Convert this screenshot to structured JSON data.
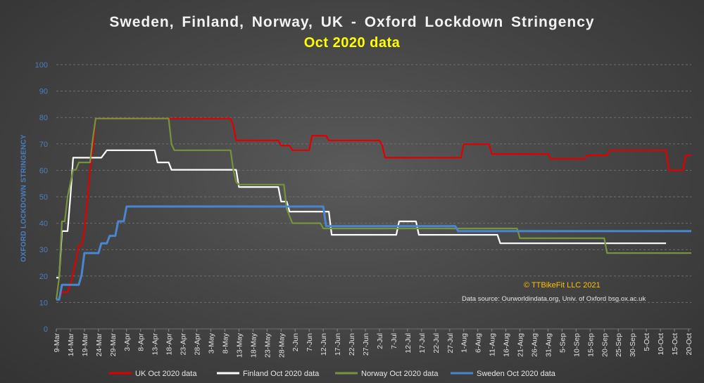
{
  "chart_data": {
    "type": "line",
    "title": "Sweden, Finland, Norway, UK -  Oxford Lockdown Stringency",
    "subtitle": "Oct 2020 data",
    "ylabel": "OXFORD LOCKDOWN STRINGENCY",
    "xlabel": "",
    "ylim": [
      0,
      100
    ],
    "yticks": [
      0,
      10,
      20,
      30,
      40,
      50,
      60,
      70,
      80,
      90,
      100
    ],
    "grid": true,
    "legend_position": "bottom",
    "x_start": "9-Mar",
    "x_tick_labels": [
      "9-Mar",
      "14-Mar",
      "19-Mar",
      "24-Mar",
      "29-Mar",
      "3-Apr",
      "8-Apr",
      "13-Apr",
      "18-Apr",
      "23-Apr",
      "28-Apr",
      "3-May",
      "8-May",
      "13-May",
      "18-May",
      "23-May",
      "28-May",
      "2-Jun",
      "7-Jun",
      "12-Jun",
      "17-Jun",
      "22-Jun",
      "27-Jun",
      "2-Jul",
      "7-Jul",
      "12-Jul",
      "17-Jul",
      "22-Jul",
      "27-Jul",
      "1-Aug",
      "6-Aug",
      "11-Aug",
      "16-Aug",
      "21-Aug",
      "26-Aug",
      "31-Aug",
      "5-Sep",
      "10-Sep",
      "15-Sep",
      "20-Sep",
      "25-Sep",
      "30-Sep",
      "5-Oct",
      "10-Oct",
      "15-Oct",
      "20-Oct"
    ],
    "series": [
      {
        "name": "UK Oct 2020 data",
        "color": "#e00000",
        "points": [
          [
            "9-Mar",
            11.1
          ],
          [
            "10-Mar",
            11.1
          ],
          [
            "11-Mar",
            13.9
          ],
          [
            "13-Mar",
            13.9
          ],
          [
            "14-Mar",
            16.7
          ],
          [
            "16-Mar",
            25.9
          ],
          [
            "17-Mar",
            31.5
          ],
          [
            "18-Mar",
            31.5
          ],
          [
            "19-Mar",
            37.0
          ],
          [
            "20-Mar",
            48.2
          ],
          [
            "21-Mar",
            60.0
          ],
          [
            "22-Mar",
            68.0
          ],
          [
            "23-Mar",
            79.6
          ],
          [
            "18-Apr",
            79.6
          ],
          [
            "18-Apr",
            79.6
          ],
          [
            "10-May",
            79.6
          ],
          [
            "11-May",
            77.0
          ],
          [
            "12-May",
            71.3
          ],
          [
            "27-May",
            71.3
          ],
          [
            "28-May",
            69.4
          ],
          [
            "31-May",
            69.4
          ],
          [
            "1-Jun",
            67.6
          ],
          [
            "7-Jun",
            67.6
          ],
          [
            "8-Jun",
            73.1
          ],
          [
            "13-Jun",
            73.1
          ],
          [
            "14-Jun",
            71.3
          ],
          [
            "30-Jun",
            71.3
          ],
          [
            "2-Jul",
            71.3
          ],
          [
            "3-Jul",
            69.4
          ],
          [
            "4-Jul",
            64.8
          ],
          [
            "31-Jul",
            64.8
          ],
          [
            "1-Aug",
            69.9
          ],
          [
            "10-Aug",
            69.9
          ],
          [
            "11-Aug",
            66.2
          ],
          [
            "31-Aug",
            66.2
          ],
          [
            "1-Sep",
            64.4
          ],
          [
            "13-Sep",
            64.4
          ],
          [
            "14-Sep",
            65.7
          ],
          [
            "21-Sep",
            65.7
          ],
          [
            "22-Sep",
            67.6
          ],
          [
            "12-Oct",
            67.6
          ],
          [
            "13-Oct",
            60.0
          ],
          [
            "18-Oct",
            60.0
          ],
          [
            "19-Oct",
            65.7
          ],
          [
            "21-Oct",
            65.7
          ]
        ]
      },
      {
        "name": "Finland Oct 2020 data",
        "color": "#ffffff",
        "points": [
          [
            "9-Mar",
            19.4
          ],
          [
            "10-Mar",
            19.4
          ],
          [
            "11-Mar",
            37.0
          ],
          [
            "13-Mar",
            37.0
          ],
          [
            "14-Mar",
            50.0
          ],
          [
            "15-Mar",
            64.8
          ],
          [
            "25-Mar",
            64.8
          ],
          [
            "27-Mar",
            67.6
          ],
          [
            "13-Apr",
            67.6
          ],
          [
            "14-Apr",
            63.0
          ],
          [
            "18-Apr",
            63.0
          ],
          [
            "19-Apr",
            60.2
          ],
          [
            "12-May",
            60.2
          ],
          [
            "13-May",
            53.7
          ],
          [
            "27-May",
            53.7
          ],
          [
            "28-May",
            48.2
          ],
          [
            "30-May",
            48.2
          ],
          [
            "31-May",
            44.4
          ],
          [
            "14-Jun",
            44.4
          ],
          [
            "15-Jun",
            35.6
          ],
          [
            "8-Jul",
            35.6
          ],
          [
            "9-Jul",
            40.7
          ],
          [
            "15-Jul",
            40.7
          ],
          [
            "16-Jul",
            35.6
          ],
          [
            "13-Aug",
            35.6
          ],
          [
            "14-Aug",
            32.4
          ],
          [
            "12-Oct",
            32.4
          ]
        ]
      },
      {
        "name": "Norway Oct 2020 data",
        "color": "#77933c",
        "points": [
          [
            "9-Mar",
            11.1
          ],
          [
            "10-Mar",
            19.4
          ],
          [
            "11-Mar",
            40.7
          ],
          [
            "12-Mar",
            40.7
          ],
          [
            "13-Mar",
            50.0
          ],
          [
            "15-Mar",
            60.2
          ],
          [
            "16-Mar",
            60.2
          ],
          [
            "17-Mar",
            63.0
          ],
          [
            "21-Mar",
            63.0
          ],
          [
            "22-Mar",
            72.0
          ],
          [
            "23-Mar",
            79.6
          ],
          [
            "18-Apr",
            79.6
          ],
          [
            "19-Apr",
            69.9
          ],
          [
            "20-Apr",
            67.6
          ],
          [
            "10-May",
            67.6
          ],
          [
            "11-May",
            60.2
          ],
          [
            "12-May",
            55.6
          ],
          [
            "13-May",
            54.6
          ],
          [
            "29-May",
            54.6
          ],
          [
            "30-May",
            45.4
          ],
          [
            "1-Jun",
            40.0
          ],
          [
            "11-Jun",
            40.0
          ],
          [
            "12-Jun",
            38.0
          ],
          [
            "20-Aug",
            38.0
          ],
          [
            "21-Aug",
            34.3
          ],
          [
            "20-Sep",
            34.3
          ],
          [
            "21-Sep",
            28.7
          ],
          [
            "21-Oct",
            28.7
          ]
        ]
      },
      {
        "name": "Sweden Oct 2020 data",
        "color": "#4a86d0",
        "points": [
          [
            "9-Mar",
            11.1
          ],
          [
            "10-Mar",
            11.1
          ],
          [
            "11-Mar",
            16.7
          ],
          [
            "17-Mar",
            16.7
          ],
          [
            "18-Mar",
            20.4
          ],
          [
            "19-Mar",
            28.7
          ],
          [
            "24-Mar",
            28.7
          ],
          [
            "25-Mar",
            32.4
          ],
          [
            "27-Mar",
            32.4
          ],
          [
            "28-Mar",
            35.2
          ],
          [
            "30-Mar",
            35.2
          ],
          [
            "31-Mar",
            40.7
          ],
          [
            "2-Apr",
            40.7
          ],
          [
            "3-Apr",
            46.3
          ],
          [
            "12-Jun",
            46.3
          ],
          [
            "13-Jun",
            38.9
          ],
          [
            "29-Jul",
            38.9
          ],
          [
            "30-Jul",
            37.0
          ],
          [
            "21-Oct",
            37.0
          ]
        ]
      }
    ]
  },
  "annotations": {
    "credit": "© TTBikeFit LLC 2021",
    "source": "Data source: Ourworldindata.org, Univ. of Oxford bsg.ox.ac.uk"
  }
}
